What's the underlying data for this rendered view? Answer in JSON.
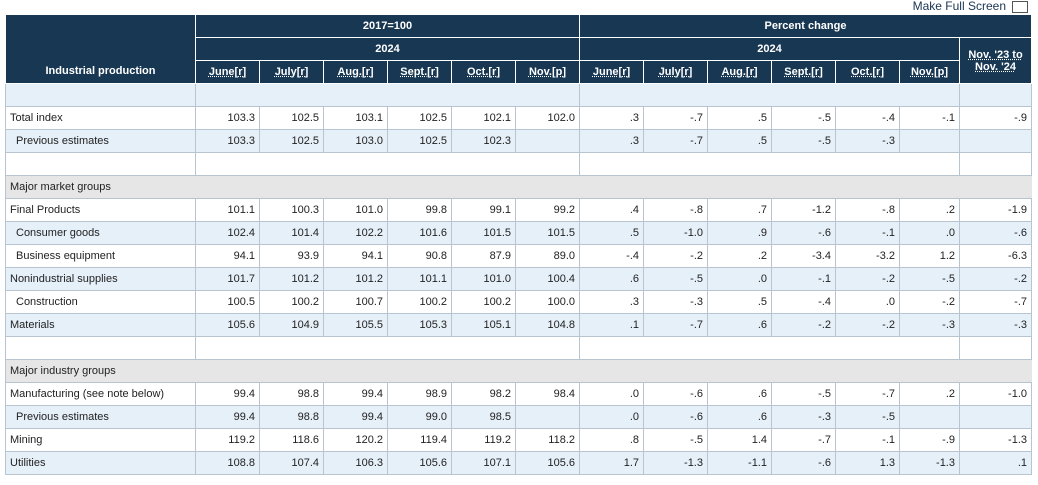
{
  "fullscreen_label": "Make Full Screen",
  "header": {
    "row_label": "Industrial production",
    "group_index": "2017=100",
    "group_pct": "Percent change",
    "year": "2024",
    "yoy": [
      "Nov. '23 to",
      "Nov. '24"
    ],
    "months": [
      "June[r]",
      "July[r]",
      "Aug.[r]",
      "Sept.[r]",
      "Oct.[r]",
      "Nov.[p]"
    ]
  },
  "colors": {
    "header_bg": "#183753",
    "row_alt": "#e6f0f9",
    "section_bg": "#e6e6e6"
  },
  "rows": [
    {
      "type": "spacer",
      "style": "blue"
    },
    {
      "label": "Total index",
      "style": "white",
      "values": [
        "103.3",
        "102.5",
        "103.1",
        "102.5",
        "102.1",
        "102.0",
        ".3",
        "-.7",
        ".5",
        "-.5",
        "-.4",
        "-.1",
        "-.9"
      ]
    },
    {
      "label": "Previous estimates",
      "indent": true,
      "style": "blue",
      "values": [
        "103.3",
        "102.5",
        "103.0",
        "102.5",
        "102.3",
        "",
        ".3",
        "-.7",
        ".5",
        "-.5",
        "-.3",
        "",
        ""
      ]
    },
    {
      "type": "spacer",
      "style": "white"
    },
    {
      "type": "section",
      "label": "Major market groups"
    },
    {
      "label": "Final Products",
      "style": "white",
      "values": [
        "101.1",
        "100.3",
        "101.0",
        "99.8",
        "99.1",
        "99.2",
        ".4",
        "-.8",
        ".7",
        "-1.2",
        "-.8",
        ".2",
        "-1.9"
      ]
    },
    {
      "label": "Consumer goods",
      "indent": true,
      "style": "blue",
      "values": [
        "102.4",
        "101.4",
        "102.2",
        "101.6",
        "101.5",
        "101.5",
        ".5",
        "-1.0",
        ".9",
        "-.6",
        "-.1",
        ".0",
        "-.6"
      ]
    },
    {
      "label": "Business equipment",
      "indent": true,
      "style": "white",
      "values": [
        "94.1",
        "93.9",
        "94.1",
        "90.8",
        "87.9",
        "89.0",
        "-.4",
        "-.2",
        ".2",
        "-3.4",
        "-3.2",
        "1.2",
        "-6.3"
      ]
    },
    {
      "label": "Nonindustrial supplies",
      "style": "blue",
      "values": [
        "101.7",
        "101.2",
        "101.2",
        "101.1",
        "101.0",
        "100.4",
        ".6",
        "-.5",
        ".0",
        "-.1",
        "-.2",
        "-.5",
        "-.2"
      ]
    },
    {
      "label": "Construction",
      "indent": true,
      "style": "white",
      "values": [
        "100.5",
        "100.2",
        "100.7",
        "100.2",
        "100.2",
        "100.0",
        ".3",
        "-.3",
        ".5",
        "-.4",
        ".0",
        "-.2",
        "-.7"
      ]
    },
    {
      "label": "Materials",
      "style": "blue",
      "values": [
        "105.6",
        "104.9",
        "105.5",
        "105.3",
        "105.1",
        "104.8",
        ".1",
        "-.7",
        ".6",
        "-.2",
        "-.2",
        "-.3",
        "-.3"
      ]
    },
    {
      "type": "spacer",
      "style": "white"
    },
    {
      "type": "section",
      "label": "Major industry groups"
    },
    {
      "label": "Manufacturing (see note below)",
      "style": "white",
      "values": [
        "99.4",
        "98.8",
        "99.4",
        "98.9",
        "98.2",
        "98.4",
        ".0",
        "-.6",
        ".6",
        "-.5",
        "-.7",
        ".2",
        "-1.0"
      ]
    },
    {
      "label": "Previous estimates",
      "indent": true,
      "style": "blue",
      "values": [
        "99.4",
        "98.8",
        "99.4",
        "99.0",
        "98.5",
        "",
        ".0",
        "-.6",
        ".6",
        "-.3",
        "-.5",
        "",
        ""
      ]
    },
    {
      "label": "Mining",
      "style": "white",
      "values": [
        "119.2",
        "118.6",
        "120.2",
        "119.4",
        "119.2",
        "118.2",
        ".8",
        "-.5",
        "1.4",
        "-.7",
        "-.1",
        "-.9",
        "-1.3"
      ]
    },
    {
      "label": "Utilities",
      "style": "blue",
      "values": [
        "108.8",
        "107.4",
        "106.3",
        "105.6",
        "107.1",
        "105.6",
        "1.7",
        "-1.3",
        "-1.1",
        "-.6",
        "1.3",
        "-1.3",
        ".1"
      ]
    }
  ]
}
